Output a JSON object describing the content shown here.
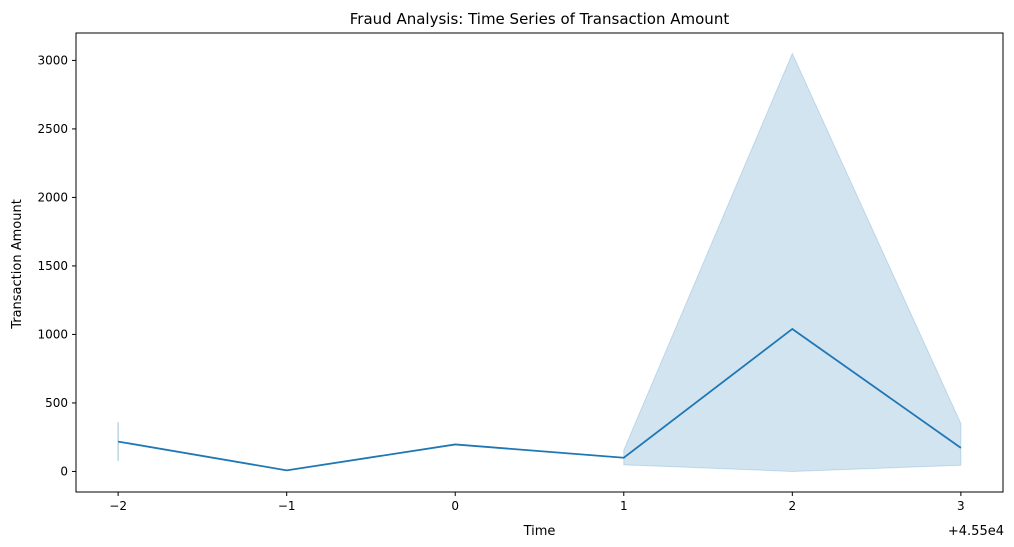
{
  "chart_data": {
    "type": "line",
    "title": "Fraud Analysis: Time Series of Transaction Amount",
    "xlabel": "Time",
    "ylabel": "Transaction Amount",
    "x_offset_label": "+4.55e4",
    "x": [
      45498,
      45499,
      45500,
      45501,
      45502,
      45503
    ],
    "x_tick_labels": [
      "−2",
      "−1",
      "0",
      "1",
      "2",
      "3"
    ],
    "x_tick_values": [
      45498,
      45499,
      45500,
      45501,
      45502,
      45503
    ],
    "xlim": [
      45497.75,
      45503.25
    ],
    "y_ticks": [
      0,
      500,
      1000,
      1500,
      2000,
      2500,
      3000
    ],
    "y_tick_labels": [
      "0",
      "500",
      "1000",
      "1500",
      "2000",
      "2500",
      "3000"
    ],
    "ylim": [
      -150,
      3200
    ],
    "grid": false,
    "legend": "none",
    "series": [
      {
        "values": [
          218,
          8,
          197,
          100,
          1040,
          172
        ],
        "ci_lower": [
          78,
          8,
          197,
          48,
          0,
          45
        ],
        "ci_upper": [
          360,
          8,
          197,
          155,
          3050,
          350
        ],
        "color": "#1f77b4",
        "band_color": "#1f77b4"
      }
    ]
  }
}
